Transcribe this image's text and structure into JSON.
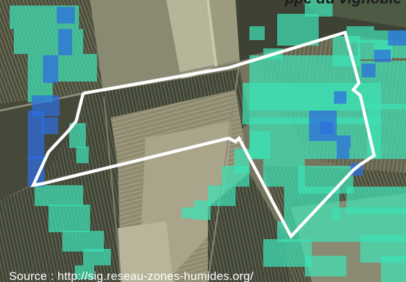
{
  "header": {
    "title": "ppé du vignoble"
  },
  "source": {
    "text": "Source : http://sig.reseau-zones-humides.org/"
  },
  "map": {
    "boundary_icon": "parcel-outline",
    "colors": {
      "boundary": "#ffffff",
      "wetland_probable": "#3ee0b4",
      "wetland_strong": "#2d6ee0",
      "imagery_dark": "#3e4234",
      "imagery_light": "#a6a68c"
    }
  }
}
